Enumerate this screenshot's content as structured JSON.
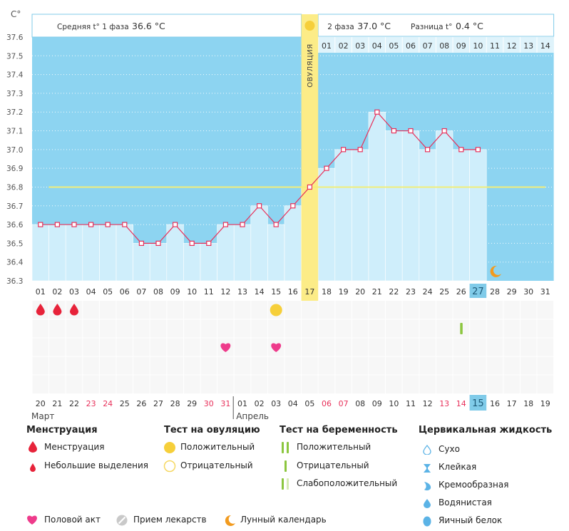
{
  "chart_data": {
    "type": "line",
    "y_unit": "C°",
    "ylim": [
      36.3,
      37.6
    ],
    "y_ticks": [
      "37.6",
      "37.5",
      "37.4",
      "37.3",
      "37.2",
      "37.1",
      "37.0",
      "36.9",
      "36.8",
      "36.7",
      "36.6",
      "36.5",
      "36.4",
      "36.3"
    ],
    "cycle_days": [
      "01",
      "02",
      "03",
      "04",
      "05",
      "06",
      "07",
      "08",
      "09",
      "10",
      "11",
      "12",
      "13",
      "14",
      "15",
      "16",
      "17",
      "18",
      "19",
      "20",
      "21",
      "22",
      "23",
      "24",
      "25",
      "26",
      "27",
      "28",
      "29",
      "30",
      "31"
    ],
    "temperatures": [
      36.6,
      36.6,
      36.6,
      36.6,
      36.6,
      36.6,
      36.5,
      36.5,
      36.6,
      36.5,
      36.5,
      36.6,
      36.6,
      36.7,
      36.6,
      36.7,
      36.8,
      36.9,
      37.0,
      37.0,
      37.2,
      37.1,
      37.1,
      37.0,
      37.1,
      37.0,
      37.0
    ],
    "coverline": 36.8,
    "ovulation_day": 17,
    "current_day": 27,
    "phase1_label": "Средняя t° 1 фаза",
    "phase1_value": "36.6 °C",
    "phase2_label": "2 фаза",
    "phase2_value": "37.0 °C",
    "diff_label": "Разница t°",
    "diff_value": "0.4 °C",
    "ovulation_label": "ОВУЛЯЦИЯ",
    "phase2_days": [
      "01",
      "02",
      "03",
      "04",
      "05",
      "06",
      "07",
      "08",
      "09",
      "10",
      "11",
      "12",
      "13",
      "14"
    ],
    "calendar_dates": [
      "20",
      "21",
      "22",
      "23",
      "24",
      "25",
      "26",
      "27",
      "28",
      "29",
      "30",
      "31",
      "01",
      "02",
      "03",
      "04",
      "05",
      "06",
      "07",
      "08",
      "09",
      "10",
      "11",
      "12",
      "13",
      "14",
      "15",
      "16",
      "17",
      "18",
      "19"
    ],
    "weekend_indices": [
      3,
      4,
      10,
      11,
      17,
      18,
      24,
      25
    ],
    "current_date_index": 26,
    "month_labels": [
      "Март",
      "Апрель"
    ],
    "markers": {
      "menstruation_days": [
        1,
        2,
        3
      ],
      "ovulation_test_positive_days": [
        15
      ],
      "pregnancy_test_negative_days": [
        26
      ],
      "intercourse_days": [
        12,
        15
      ],
      "lunar_days": [
        27
      ]
    }
  },
  "legend": {
    "menstruation": {
      "title": "Менструация",
      "items": [
        "Менструация",
        "Небольшие выделения"
      ]
    },
    "ovulation_test": {
      "title": "Тест на овуляцию",
      "items": [
        "Положительный",
        "Отрицательный"
      ]
    },
    "pregnancy_test": {
      "title": "Тест на беременность",
      "items": [
        "Положительный",
        "Отрицательный",
        "Слабоположительный"
      ]
    },
    "cervical": {
      "title": "Цервикальная жидкость",
      "items": [
        "Сухо",
        "Клейкая",
        "Кремообразная",
        "Водянистая",
        "Яичный белок"
      ]
    },
    "other": [
      "Половой акт",
      "Прием лекарств",
      "Лунный календарь"
    ]
  },
  "colors": {
    "chart_bg": "#8dd4f1",
    "bar": "#cfeefb",
    "line": "#e8305a",
    "coverline": "#f2ee7a",
    "ovulation": "#fcec87",
    "drop": "#e7233a",
    "sun": "#f6cf3a",
    "heart": "#ee3b8b",
    "test": "#8cc63f",
    "moon": "#f29b1f",
    "cervical": "#5bb3e6",
    "highlight": "#80cbe9",
    "weekend": "#e8305a"
  }
}
